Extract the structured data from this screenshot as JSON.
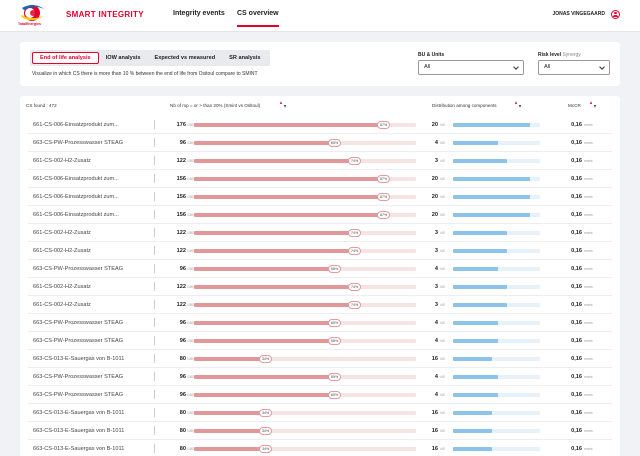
{
  "brand": {
    "logo_word": "TotalEnergies",
    "app_title": "SMART INTEGRITY",
    "accent": "#e4002b"
  },
  "nav": [
    {
      "label": "Integrity events",
      "active": false
    },
    {
      "label": "CS overview",
      "active": true
    }
  ],
  "user": {
    "name": "JONAS VINGEGAARD",
    "icon": "user-circle-icon"
  },
  "filters": {
    "tabs": [
      {
        "label": "End of life analysis",
        "active": true
      },
      {
        "label": "IOW analysis",
        "active": false
      },
      {
        "label": "Expected vs measured",
        "active": false
      },
      {
        "label": "SR analysis",
        "active": false
      }
    ],
    "description": "Visualize in which CS there is more than 10 % between the end of life from Ositoul compare to SMINT",
    "bu_units": {
      "label": "BU & Units",
      "value": "All"
    },
    "risk_level": {
      "label": "Risk level",
      "label_suffix": "Synergy",
      "value": "All"
    }
  },
  "table": {
    "headers": {
      "cs_found": "CS found : 472",
      "nb": "Nb of mp = or > than 20% (Smint vs Osltoul)",
      "dist": "Distribution among components",
      "mcr": "McCR"
    },
    "unit": "mm/a",
    "rows": [
      {
        "name": "661-CS-006-Einsatzprodukt zum...",
        "nb": "176",
        "total": "/180",
        "pct": "87",
        "dist": "20",
        "dist_unit": "/40",
        "dist_frac": 0.88,
        "mcr": "0,16"
      },
      {
        "name": "663-CS-PW-Prozesswasser STEAG",
        "nb": "96",
        "total": "/180",
        "pct": "65",
        "dist": "4",
        "dist_unit": "/40",
        "dist_frac": 0.52,
        "mcr": "0,16"
      },
      {
        "name": "661-CS-002-H2-Zusatz",
        "nb": "122",
        "total": "/180",
        "pct": "74",
        "dist": "3",
        "dist_unit": "/40",
        "dist_frac": 0.62,
        "mcr": "0,16"
      },
      {
        "name": "661-CS-006-Einsatzprodukt zum...",
        "nb": "156",
        "total": "/180",
        "pct": "87",
        "dist": "20",
        "dist_unit": "/40",
        "dist_frac": 0.88,
        "mcr": "0,16"
      },
      {
        "name": "661-CS-006-Einsatzprodukt zum...",
        "nb": "156",
        "total": "/180",
        "pct": "87",
        "dist": "20",
        "dist_unit": "/40",
        "dist_frac": 0.88,
        "mcr": "0,16"
      },
      {
        "name": "661-CS-006-Einsatzprodukt zum...",
        "nb": "156",
        "total": "/180",
        "pct": "87",
        "dist": "20",
        "dist_unit": "/40",
        "dist_frac": 0.88,
        "mcr": "0,16"
      },
      {
        "name": "661-CS-002-H2-Zusatz",
        "nb": "122",
        "total": "/180",
        "pct": "74",
        "dist": "3",
        "dist_unit": "/40",
        "dist_frac": 0.62,
        "mcr": "0,16"
      },
      {
        "name": "661-CS-002-H2-Zusatz",
        "nb": "122",
        "total": "/180",
        "pct": "74",
        "dist": "3",
        "dist_unit": "/40",
        "dist_frac": 0.62,
        "mcr": "0,16"
      },
      {
        "name": "663-CS-PW-Prozesswasser STEAG",
        "nb": "96",
        "total": "/180",
        "pct": "65",
        "dist": "4",
        "dist_unit": "/40",
        "dist_frac": 0.52,
        "mcr": "0,16"
      },
      {
        "name": "661-CS-002-H2-Zusatz",
        "nb": "122",
        "total": "/180",
        "pct": "74",
        "dist": "3",
        "dist_unit": "/40",
        "dist_frac": 0.62,
        "mcr": "0,16"
      },
      {
        "name": "661-CS-002-H2-Zusatz",
        "nb": "122",
        "total": "/180",
        "pct": "74",
        "dist": "3",
        "dist_unit": "/40",
        "dist_frac": 0.62,
        "mcr": "0,16"
      },
      {
        "name": "663-CS-PW-Prozesswasser STEAG",
        "nb": "96",
        "total": "/180",
        "pct": "65",
        "dist": "4",
        "dist_unit": "/40",
        "dist_frac": 0.52,
        "mcr": "0,16"
      },
      {
        "name": "663-CS-PW-Prozesswasser STEAG",
        "nb": "96",
        "total": "/180",
        "pct": "65",
        "dist": "4",
        "dist_unit": "/40",
        "dist_frac": 0.52,
        "mcr": "0,16"
      },
      {
        "name": "663-CS-013-E-Sauergas von B-1011",
        "nb": "80",
        "total": "/180",
        "pct": "34",
        "dist": "16",
        "dist_unit": "/40",
        "dist_frac": 0.45,
        "mcr": "0,16"
      },
      {
        "name": "663-CS-PW-Prozesswasser STEAG",
        "nb": "96",
        "total": "/180",
        "pct": "65",
        "dist": "4",
        "dist_unit": "/40",
        "dist_frac": 0.52,
        "mcr": "0,16"
      },
      {
        "name": "663-CS-PW-Prozesswasser STEAG",
        "nb": "96",
        "total": "/180",
        "pct": "65",
        "dist": "4",
        "dist_unit": "/40",
        "dist_frac": 0.52,
        "mcr": "0,16"
      },
      {
        "name": "663-CS-013-E-Sauergas von B-1011",
        "nb": "80",
        "total": "/180",
        "pct": "34",
        "dist": "16",
        "dist_unit": "/40",
        "dist_frac": 0.45,
        "mcr": "0,16"
      },
      {
        "name": "663-CS-013-E-Sauergas von B-1011",
        "nb": "80",
        "total": "/180",
        "pct": "34",
        "dist": "16",
        "dist_unit": "/40",
        "dist_frac": 0.45,
        "mcr": "0,16"
      },
      {
        "name": "663-CS-013-E-Sauergas von B-1011",
        "nb": "80",
        "total": "/180",
        "pct": "34",
        "dist": "16",
        "dist_unit": "/40",
        "dist_frac": 0.45,
        "mcr": "0,16"
      }
    ]
  }
}
